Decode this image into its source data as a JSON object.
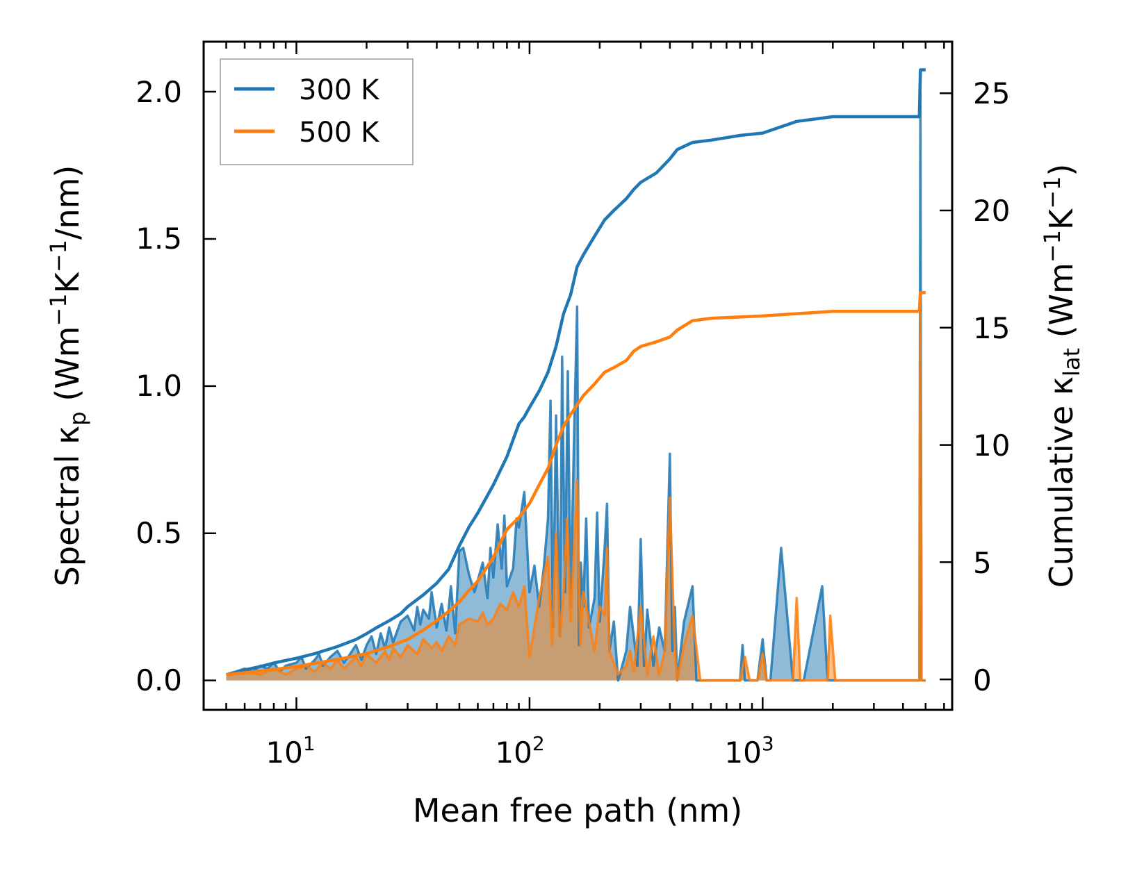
{
  "chart_data": {
    "type": "line",
    "xlabel": "Mean free path (nm)",
    "xscale": "log",
    "xlim": [
      4,
      6500
    ],
    "x_ticks": [
      {
        "value": 10,
        "base": "10",
        "exp": "1"
      },
      {
        "value": 100,
        "base": "10",
        "exp": "2"
      },
      {
        "value": 1000,
        "base": "10",
        "exp": "3"
      }
    ],
    "y_left": {
      "label_main": "Spectral κ",
      "label_sub": "p",
      "label_unit_open": " (Wm",
      "label_sup1": "−1",
      "label_k": "K",
      "label_sup2": "−1",
      "label_unit_close": "/nm)",
      "ylim": [
        -0.1,
        2.17
      ],
      "ticks": [
        "0.0",
        "0.5",
        "1.0",
        "1.5",
        "2.0"
      ]
    },
    "y_right": {
      "label_main": "Cumulative κ",
      "label_sub": "lat",
      "label_unit_open": " (Wm",
      "label_sup1": "−1",
      "label_k": "K",
      "label_sup2": "−1",
      "label_unit_close": ")",
      "ylim": [
        -1.3,
        27.2
      ],
      "ticks": [
        "0",
        "5",
        "10",
        "15",
        "20",
        "25"
      ]
    },
    "legend": {
      "position": "top-left",
      "entries": [
        {
          "label": "300 K",
          "color": "#1f77b4"
        },
        {
          "label": "500 K",
          "color": "#ff7f0e"
        }
      ]
    },
    "series": [
      {
        "name": "300 K cumulative",
        "axis": "right",
        "color": "#1f77b4",
        "x": [
          5,
          6,
          7,
          8,
          10,
          12,
          15,
          18,
          20,
          22,
          25,
          28,
          30,
          35,
          40,
          45,
          50,
          55,
          60,
          70,
          80,
          90,
          95,
          100,
          110,
          120,
          130,
          140,
          150,
          160,
          170,
          190,
          210,
          230,
          260,
          280,
          300,
          350,
          400,
          430,
          500,
          600,
          800,
          1000,
          1400,
          2000,
          4700,
          4750,
          5000
        ],
        "values": [
          0.2,
          0.4,
          0.55,
          0.7,
          0.9,
          1.1,
          1.4,
          1.7,
          1.95,
          2.2,
          2.5,
          2.8,
          3.1,
          3.6,
          4.1,
          4.7,
          5.7,
          6.5,
          7.1,
          8.3,
          9.5,
          10.9,
          11.2,
          11.6,
          12.3,
          13.1,
          14.2,
          15.6,
          16.4,
          17.6,
          18.1,
          18.9,
          19.6,
          20.0,
          20.5,
          20.9,
          21.2,
          21.6,
          22.2,
          22.6,
          22.9,
          23.0,
          23.2,
          23.3,
          23.8,
          24.0,
          24.0,
          26.0,
          26.0
        ]
      },
      {
        "name": "500 K cumulative",
        "axis": "right",
        "color": "#ff7f0e",
        "x": [
          5,
          7,
          10,
          15,
          20,
          25,
          30,
          35,
          40,
          45,
          50,
          55,
          60,
          70,
          80,
          90,
          100,
          110,
          120,
          130,
          140,
          150,
          170,
          190,
          210,
          230,
          260,
          280,
          300,
          350,
          400,
          430,
          500,
          600,
          1000,
          1400,
          2000,
          4700,
          4750,
          5000
        ],
        "values": [
          0.2,
          0.35,
          0.55,
          0.85,
          1.1,
          1.4,
          1.7,
          2.1,
          2.5,
          2.9,
          3.3,
          3.8,
          4.2,
          5.2,
          6.4,
          6.9,
          7.5,
          8.3,
          9.0,
          10.0,
          10.8,
          11.3,
          12.1,
          12.6,
          13.1,
          13.3,
          13.6,
          14.0,
          14.2,
          14.4,
          14.6,
          14.9,
          15.3,
          15.4,
          15.5,
          15.6,
          15.7,
          15.7,
          16.5,
          16.5
        ]
      },
      {
        "name": "300 K spectral",
        "axis": "left",
        "color": "#1f77b4",
        "fill": true,
        "x": [
          5,
          5.5,
          6,
          6.5,
          7,
          7.5,
          8,
          8.5,
          9,
          10,
          10.5,
          11,
          12,
          12.5,
          13,
          14,
          15,
          16,
          17,
          18,
          19,
          20,
          21,
          22,
          23,
          24,
          25,
          26,
          28,
          30,
          32,
          33,
          34,
          35,
          37,
          38,
          40,
          42,
          44,
          46,
          48,
          50,
          52,
          55,
          58,
          60,
          63,
          66,
          68,
          70,
          73,
          76,
          78,
          80,
          85,
          88,
          90,
          95,
          100,
          105,
          110,
          115,
          120,
          123,
          126,
          130,
          135,
          138,
          142,
          146,
          150,
          155,
          160,
          163,
          166,
          170,
          175,
          180,
          190,
          195,
          200,
          210,
          215,
          220,
          230,
          240,
          260,
          270,
          280,
          290,
          300,
          310,
          320,
          340,
          360,
          380,
          400,
          410,
          420,
          430,
          460,
          500,
          520,
          540,
          560,
          600,
          800,
          820,
          840,
          880,
          950,
          1000,
          1040,
          1080,
          1200,
          1350,
          1400,
          1450,
          1500,
          1800,
          1900,
          1950,
          2050,
          4600,
          4700,
          4750,
          4800,
          4900,
          5000
        ],
        "values": [
          0.02,
          0.03,
          0.04,
          0.03,
          0.05,
          0.04,
          0.06,
          0.03,
          0.05,
          0.06,
          0.08,
          0.04,
          0.07,
          0.09,
          0.05,
          0.08,
          0.1,
          0.06,
          0.09,
          0.12,
          0.07,
          0.12,
          0.15,
          0.09,
          0.16,
          0.11,
          0.18,
          0.13,
          0.2,
          0.22,
          0.17,
          0.25,
          0.19,
          0.24,
          0.21,
          0.3,
          0.18,
          0.26,
          0.17,
          0.32,
          0.16,
          0.44,
          0.45,
          0.36,
          0.3,
          0.34,
          0.4,
          0.28,
          0.45,
          0.35,
          0.53,
          0.38,
          0.56,
          0.32,
          0.38,
          0.55,
          0.52,
          0.64,
          0.3,
          0.39,
          0.25,
          0.38,
          0.55,
          0.95,
          0.18,
          0.9,
          0.15,
          1.1,
          0.3,
          1.05,
          0.25,
          0.8,
          1.27,
          0.12,
          0.4,
          0.25,
          0.55,
          0.18,
          0.28,
          0.57,
          0.2,
          0.45,
          0.6,
          0.1,
          0.2,
          0.0,
          0.1,
          0.25,
          0.15,
          0.05,
          0.48,
          0.05,
          0.24,
          0.05,
          0.18,
          0.1,
          0.77,
          0.1,
          0.25,
          0.0,
          0.2,
          0.32,
          0.0,
          0.0,
          0.0,
          0.0,
          0.0,
          0.12,
          0.0,
          0.0,
          0.0,
          0.14,
          0.0,
          0.0,
          0.45,
          0.0,
          0.0,
          0.0,
          0.0,
          0.32,
          0.0,
          0.0,
          0.0,
          0.0,
          0.0,
          2.0,
          0.0,
          0.0,
          0.0
        ]
      },
      {
        "name": "500 K spectral",
        "axis": "left",
        "color": "#ff7f0e",
        "fill": true,
        "x": [
          5,
          6,
          7,
          8,
          9,
          10,
          11,
          12,
          13,
          14,
          15,
          16,
          18,
          19,
          20,
          22,
          24,
          25,
          26,
          28,
          30,
          33,
          35,
          38,
          40,
          42,
          45,
          48,
          50,
          55,
          60,
          63,
          66,
          70,
          75,
          80,
          85,
          90,
          95,
          100,
          110,
          120,
          125,
          130,
          135,
          140,
          145,
          150,
          160,
          165,
          170,
          180,
          190,
          200,
          210,
          215,
          220,
          240,
          260,
          270,
          280,
          300,
          320,
          340,
          360,
          380,
          400,
          420,
          430,
          460,
          500,
          540,
          560,
          600,
          800,
          840,
          880,
          950,
          1000,
          1040,
          1080,
          1350,
          1400,
          1450,
          1500,
          1900,
          1950,
          2050,
          4600,
          4700,
          4750,
          4800,
          4900,
          5000
        ],
        "values": [
          0.02,
          0.03,
          0.02,
          0.04,
          0.02,
          0.04,
          0.05,
          0.03,
          0.06,
          0.04,
          0.07,
          0.04,
          0.08,
          0.05,
          0.09,
          0.06,
          0.1,
          0.07,
          0.11,
          0.08,
          0.12,
          0.09,
          0.14,
          0.11,
          0.13,
          0.1,
          0.15,
          0.12,
          0.19,
          0.21,
          0.2,
          0.23,
          0.19,
          0.21,
          0.26,
          0.24,
          0.3,
          0.25,
          0.32,
          0.08,
          0.28,
          0.42,
          0.12,
          0.5,
          0.15,
          0.3,
          0.55,
          0.2,
          0.68,
          0.12,
          0.3,
          0.2,
          0.1,
          0.25,
          0.22,
          0.45,
          0.1,
          0.02,
          0.05,
          0.1,
          0.03,
          0.25,
          0.02,
          0.15,
          0.02,
          0.1,
          0.62,
          0.1,
          0.0,
          0.12,
          0.22,
          0.0,
          0.0,
          0.0,
          0.0,
          0.08,
          0.0,
          0.0,
          0.09,
          0.0,
          0.0,
          0.0,
          0.28,
          0.0,
          0.0,
          0.0,
          0.22,
          0.0,
          0.0,
          0.0,
          1.25,
          0.0,
          0.0,
          0.0
        ]
      }
    ]
  }
}
